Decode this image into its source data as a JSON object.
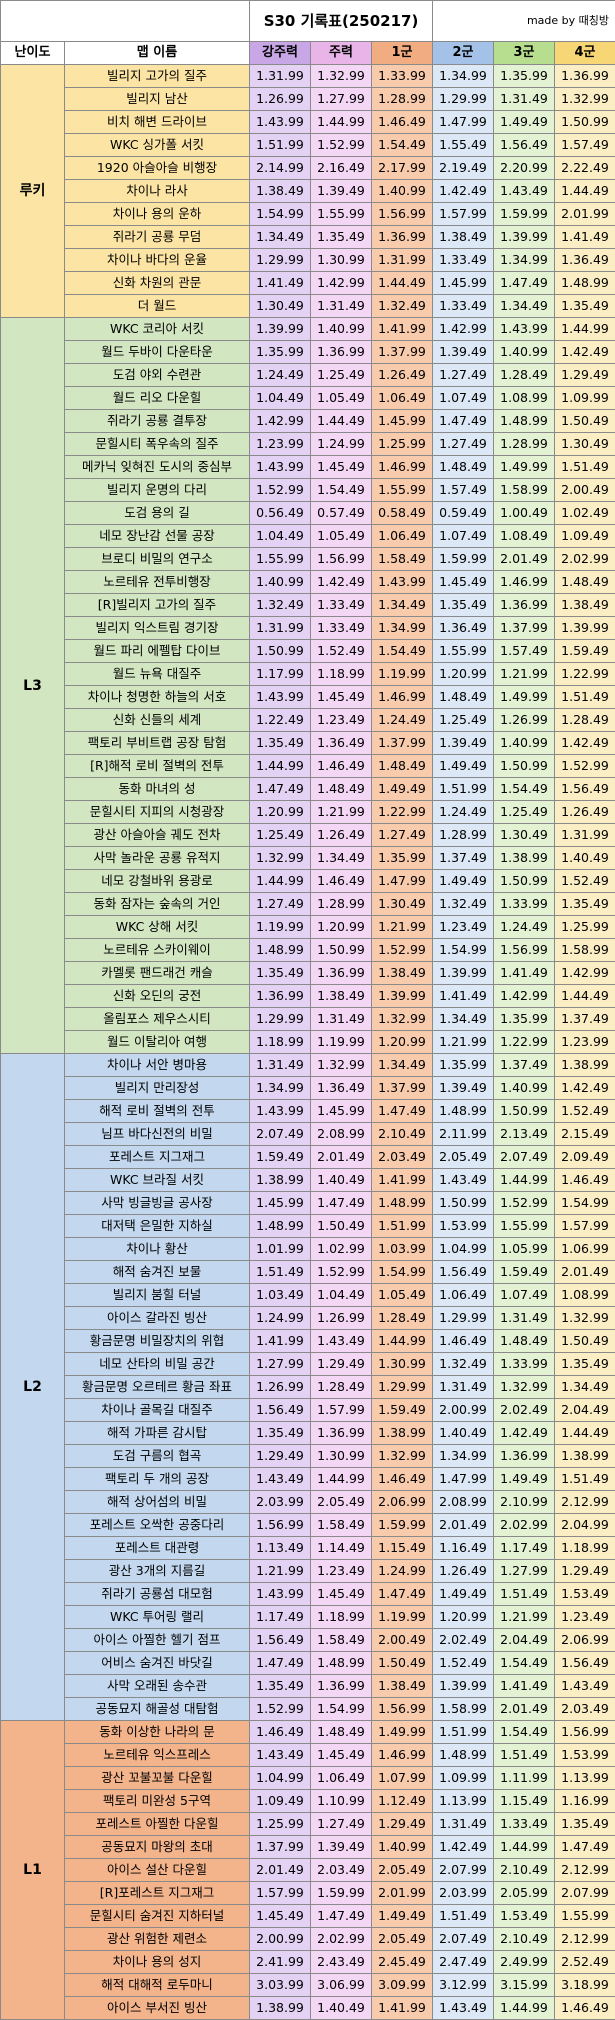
{
  "title": "S30 기록표(250217)",
  "made_by": "made by 때칭방",
  "headers": [
    "난이도",
    "맵 이름",
    "강주력",
    "주력",
    "1군",
    "2군",
    "3군",
    "4군"
  ],
  "colors": {
    "rookie": "#fce5a4",
    "L3": "#d3e6c2",
    "L2": "#c3d8ef",
    "L1": "#f3b38b"
  },
  "sections": [
    {
      "level": "루키",
      "key": "rookie",
      "rows": [
        [
          "빌리지 고가의 질주",
          "1.31.99",
          "1.32.99",
          "1.33.99",
          "1.34.99",
          "1.35.99",
          "1.36.99"
        ],
        [
          "빌리지 남산",
          "1.26.99",
          "1.27.99",
          "1.28.99",
          "1.29.99",
          "1.31.49",
          "1.32.99"
        ],
        [
          "비치 해변 드라이브",
          "1.43.99",
          "1.44.99",
          "1.46.49",
          "1.47.99",
          "1.49.49",
          "1.50.99"
        ],
        [
          "WKC 싱가폴 서킷",
          "1.51.99",
          "1.52.99",
          "1.54.49",
          "1.55.49",
          "1.56.49",
          "1.57.49"
        ],
        [
          "1920 아슬아슬 비행장",
          "2.14.99",
          "2.16.49",
          "2.17.99",
          "2.19.49",
          "2.20.99",
          "2.22.49"
        ],
        [
          "차이나 라사",
          "1.38.49",
          "1.39.49",
          "1.40.99",
          "1.42.49",
          "1.43.49",
          "1.44.49"
        ],
        [
          "차이나 용의 운하",
          "1.54.99",
          "1.55.99",
          "1.56.99",
          "1.57.99",
          "1.59.99",
          "2.01.99"
        ],
        [
          "쥐라기 공룡 무덤",
          "1.34.49",
          "1.35.49",
          "1.36.99",
          "1.38.49",
          "1.39.99",
          "1.41.49"
        ],
        [
          "차이나 바다의 운율",
          "1.29.99",
          "1.30.99",
          "1.31.99",
          "1.33.49",
          "1.34.99",
          "1.36.49"
        ],
        [
          "신화 차원의 관문",
          "1.41.49",
          "1.42.99",
          "1.44.49",
          "1.45.99",
          "1.47.49",
          "1.48.99"
        ],
        [
          "더 월드",
          "1.30.49",
          "1.31.49",
          "1.32.49",
          "1.33.49",
          "1.34.49",
          "1.35.49"
        ]
      ]
    },
    {
      "level": "L3",
      "key": "L3",
      "rows": [
        [
          "WKC 코리아 서킷",
          "1.39.99",
          "1.40.99",
          "1.41.99",
          "1.42.99",
          "1.43.99",
          "1.44.99"
        ],
        [
          "월드 두바이 다운타운",
          "1.35.99",
          "1.36.99",
          "1.37.99",
          "1.39.49",
          "1.40.99",
          "1.42.49"
        ],
        [
          "도검 야외 수련관",
          "1.24.49",
          "1.25.49",
          "1.26.49",
          "1.27.49",
          "1.28.49",
          "1.29.49"
        ],
        [
          "월드 리오 다운힐",
          "1.04.49",
          "1.05.49",
          "1.06.49",
          "1.07.49",
          "1.08.99",
          "1.09.99"
        ],
        [
          "쥐라기 공룡 결투장",
          "1.42.99",
          "1.44.49",
          "1.45.99",
          "1.47.49",
          "1.48.99",
          "1.50.49"
        ],
        [
          "문힐시티 폭우속의 질주",
          "1.23.99",
          "1.24.99",
          "1.25.99",
          "1.27.49",
          "1.28.99",
          "1.30.49"
        ],
        [
          "메카닉 잊혀진 도시의 중심부",
          "1.43.99",
          "1.45.49",
          "1.46.99",
          "1.48.49",
          "1.49.99",
          "1.51.49"
        ],
        [
          "빌리지 운명의 다리",
          "1.52.99",
          "1.54.49",
          "1.55.99",
          "1.57.49",
          "1.58.99",
          "2.00.49"
        ],
        [
          "도검 용의 길",
          "0.56.49",
          "0.57.49",
          "0.58.49",
          "0.59.49",
          "1.00.49",
          "1.02.49"
        ],
        [
          "네모 장난감 선물 공장",
          "1.04.49",
          "1.05.49",
          "1.06.49",
          "1.07.49",
          "1.08.49",
          "1.09.49"
        ],
        [
          "브로디 비밀의 연구소",
          "1.55.99",
          "1.56.99",
          "1.58.49",
          "1.59.99",
          "2.01.49",
          "2.02.99"
        ],
        [
          "노르테유 전투비행장",
          "1.40.99",
          "1.42.49",
          "1.43.99",
          "1.45.49",
          "1.46.99",
          "1.48.49"
        ],
        [
          "[R]빌리지 고가의 질주",
          "1.32.49",
          "1.33.49",
          "1.34.49",
          "1.35.49",
          "1.36.99",
          "1.38.49"
        ],
        [
          "빌리지 익스트림 경기장",
          "1.31.99",
          "1.33.49",
          "1.34.99",
          "1.36.49",
          "1.37.99",
          "1.39.99"
        ],
        [
          "월드 파리 에펠탑 다이브",
          "1.50.99",
          "1.52.49",
          "1.54.49",
          "1.55.99",
          "1.57.49",
          "1.59.49"
        ],
        [
          "월드 뉴욕 대질주",
          "1.17.99",
          "1.18.99",
          "1.19.99",
          "1.20.99",
          "1.21.99",
          "1.22.99"
        ],
        [
          "차이나 청명한 하늘의 서호",
          "1.43.99",
          "1.45.49",
          "1.46.99",
          "1.48.49",
          "1.49.99",
          "1.51.49"
        ],
        [
          "신화 신들의 세계",
          "1.22.49",
          "1.23.49",
          "1.24.49",
          "1.25.49",
          "1.26.99",
          "1.28.49"
        ],
        [
          "팩토리 부비트랩 공장 탐험",
          "1.35.49",
          "1.36.49",
          "1.37.99",
          "1.39.49",
          "1.40.99",
          "1.42.49"
        ],
        [
          "[R]해적 로비 절벽의 전투",
          "1.44.99",
          "1.46.49",
          "1.48.49",
          "1.49.49",
          "1.50.99",
          "1.52.99"
        ],
        [
          "동화 마녀의 성",
          "1.47.49",
          "1.48.49",
          "1.49.49",
          "1.51.99",
          "1.54.49",
          "1.56.49"
        ],
        [
          "문힐시티 지피의 시청광장",
          "1.20.99",
          "1.21.99",
          "1.22.99",
          "1.24.49",
          "1.25.49",
          "1.26.49"
        ],
        [
          "광산 아슬아슬 궤도 전차",
          "1.25.49",
          "1.26.49",
          "1.27.49",
          "1.28.99",
          "1.30.49",
          "1.31.99"
        ],
        [
          "사막 놀라운 공룡 유적지",
          "1.32.99",
          "1.34.49",
          "1.35.99",
          "1.37.49",
          "1.38.99",
          "1.40.49"
        ],
        [
          "네모 강철바위 용광로",
          "1.44.99",
          "1.46.49",
          "1.47.99",
          "1.49.49",
          "1.50.99",
          "1.52.49"
        ],
        [
          "동화 잠자는 숲속의 거인",
          "1.27.49",
          "1.28.99",
          "1.30.49",
          "1.32.49",
          "1.33.99",
          "1.35.49"
        ],
        [
          "WKC 상해 서킷",
          "1.19.99",
          "1.20.99",
          "1.21.99",
          "1.23.49",
          "1.24.49",
          "1.25.99"
        ],
        [
          "노르테유 스카이웨이",
          "1.48.99",
          "1.50.99",
          "1.52.99",
          "1.54.99",
          "1.56.99",
          "1.58.99"
        ],
        [
          "카멜롯 팬드래건 캐슬",
          "1.35.49",
          "1.36.99",
          "1.38.49",
          "1.39.99",
          "1.41.49",
          "1.42.99"
        ],
        [
          "신화 오딘의 궁전",
          "1.36.99",
          "1.38.49",
          "1.39.99",
          "1.41.49",
          "1.42.99",
          "1.44.49"
        ],
        [
          "올림포스 제우스시티",
          "1.29.99",
          "1.31.49",
          "1.32.99",
          "1.34.49",
          "1.35.99",
          "1.37.49"
        ],
        [
          "월드 이탈리아 여행",
          "1.18.99",
          "1.19.99",
          "1.20.99",
          "1.21.99",
          "1.22.99",
          "1.23.99"
        ]
      ]
    },
    {
      "level": "L2",
      "key": "L2",
      "rows": [
        [
          "차이나 서안 병마용",
          "1.31.49",
          "1.32.99",
          "1.34.49",
          "1.35.99",
          "1.37.49",
          "1.38.99"
        ],
        [
          "빌리지 만리장성",
          "1.34.99",
          "1.36.49",
          "1.37.99",
          "1.39.49",
          "1.40.99",
          "1.42.49"
        ],
        [
          "해적 로비 절벽의 전투",
          "1.43.99",
          "1.45.99",
          "1.47.49",
          "1.48.99",
          "1.50.99",
          "1.52.49"
        ],
        [
          "님프 바다신전의 비밀",
          "2.07.49",
          "2.08.99",
          "2.10.49",
          "2.11.99",
          "2.13.49",
          "2.15.49"
        ],
        [
          "포레스트 지그재그",
          "1.59.49",
          "2.01.49",
          "2.03.49",
          "2.05.49",
          "2.07.49",
          "2.09.49"
        ],
        [
          "WKC 브라질 서킷",
          "1.38.99",
          "1.40.49",
          "1.41.99",
          "1.43.49",
          "1.44.99",
          "1.46.49"
        ],
        [
          "사막 빙글빙글 공사장",
          "1.45.99",
          "1.47.49",
          "1.48.99",
          "1.50.99",
          "1.52.99",
          "1.54.99"
        ],
        [
          "대저택 은밀한 지하실",
          "1.48.99",
          "1.50.49",
          "1.51.99",
          "1.53.99",
          "1.55.99",
          "1.57.99"
        ],
        [
          "차이나 황산",
          "1.01.99",
          "1.02.99",
          "1.03.99",
          "1.04.99",
          "1.05.99",
          "1.06.99"
        ],
        [
          "해적 숨겨진 보물",
          "1.51.49",
          "1.52.99",
          "1.54.99",
          "1.56.49",
          "1.59.49",
          "2.01.49"
        ],
        [
          "빌리지 붐힐 터널",
          "1.03.49",
          "1.04.49",
          "1.05.49",
          "1.06.49",
          "1.07.49",
          "1.08.99"
        ],
        [
          "아이스 갈라진 빙산",
          "1.24.99",
          "1.26.99",
          "1.28.49",
          "1.29.99",
          "1.31.49",
          "1.32.99"
        ],
        [
          "황금문명 비밀장치의 위협",
          "1.41.99",
          "1.43.49",
          "1.44.99",
          "1.46.49",
          "1.48.49",
          "1.50.49"
        ],
        [
          "네모 산타의 비밀 공간",
          "1.27.99",
          "1.29.49",
          "1.30.99",
          "1.32.49",
          "1.33.99",
          "1.35.49"
        ],
        [
          "황금문명 오르테르 황금 좌표",
          "1.26.99",
          "1.28.49",
          "1.29.99",
          "1.31.49",
          "1.32.99",
          "1.34.49"
        ],
        [
          "차이나 골목길 대질주",
          "1.56.49",
          "1.57.99",
          "1.59.49",
          "2.00.99",
          "2.02.49",
          "2.04.49"
        ],
        [
          "해적 가파른 감시탑",
          "1.35.49",
          "1.36.99",
          "1.38.99",
          "1.40.49",
          "1.42.49",
          "1.44.49"
        ],
        [
          "도검 구름의 협곡",
          "1.29.49",
          "1.30.99",
          "1.32.99",
          "1.34.99",
          "1.36.99",
          "1.38.99"
        ],
        [
          "팩토리 두 개의 공장",
          "1.43.49",
          "1.44.99",
          "1.46.49",
          "1.47.99",
          "1.49.49",
          "1.51.49"
        ],
        [
          "해적 상어섬의 비밀",
          "2.03.99",
          "2.05.49",
          "2.06.99",
          "2.08.99",
          "2.10.99",
          "2.12.99"
        ],
        [
          "포레스트 오싹한 공중다리",
          "1.56.99",
          "1.58.49",
          "1.59.99",
          "2.01.49",
          "2.02.99",
          "2.04.99"
        ],
        [
          "포레스트 대관령",
          "1.13.49",
          "1.14.49",
          "1.15.49",
          "1.16.49",
          "1.17.49",
          "1.18.99"
        ],
        [
          "광산 3개의 지름길",
          "1.21.99",
          "1.23.49",
          "1.24.99",
          "1.26.49",
          "1.27.99",
          "1.29.49"
        ],
        [
          "쥐라기 공룡섬 대모험",
          "1.43.99",
          "1.45.49",
          "1.47.49",
          "1.49.49",
          "1.51.49",
          "1.53.49"
        ],
        [
          "WKC 투어링 랠리",
          "1.17.49",
          "1.18.99",
          "1.19.99",
          "1.20.99",
          "1.21.99",
          "1.23.49"
        ],
        [
          "아이스 아찔한 헬기 점프",
          "1.56.49",
          "1.58.49",
          "2.00.49",
          "2.02.49",
          "2.04.49",
          "2.06.99"
        ],
        [
          "어비스 숨겨진 바닷길",
          "1.47.49",
          "1.48.99",
          "1.50.49",
          "1.52.49",
          "1.54.49",
          "1.56.49"
        ],
        [
          "사막 오래된 송수관",
          "1.35.49",
          "1.36.99",
          "1.38.49",
          "1.39.99",
          "1.41.49",
          "1.43.49"
        ],
        [
          "공동묘지 해골성 대탐험",
          "1.52.99",
          "1.54.99",
          "1.56.99",
          "1.58.99",
          "2.01.49",
          "2.03.49"
        ]
      ]
    },
    {
      "level": "L1",
      "key": "L1",
      "rows": [
        [
          "동화 이상한 나라의 문",
          "1.46.49",
          "1.48.49",
          "1.49.99",
          "1.51.99",
          "1.54.49",
          "1.56.99"
        ],
        [
          "노르테유 익스프레스",
          "1.43.49",
          "1.45.49",
          "1.46.99",
          "1.48.99",
          "1.51.49",
          "1.53.99"
        ],
        [
          "광산 꼬불꼬불 다운힐",
          "1.04.99",
          "1.06.49",
          "1.07.99",
          "1.09.99",
          "1.11.99",
          "1.13.99"
        ],
        [
          "팩토리 미완성 5구역",
          "1.09.49",
          "1.10.99",
          "1.12.49",
          "1.13.99",
          "1.15.49",
          "1.16.99"
        ],
        [
          "포레스트 아찔한 다운힐",
          "1.25.99",
          "1.27.49",
          "1.29.49",
          "1.31.49",
          "1.33.49",
          "1.35.49"
        ],
        [
          "공동묘지 마왕의 초대",
          "1.37.99",
          "1.39.49",
          "1.40.99",
          "1.42.49",
          "1.44.99",
          "1.47.49"
        ],
        [
          "아이스 설산 다운힐",
          "2.01.49",
          "2.03.49",
          "2.05.49",
          "2.07.99",
          "2.10.49",
          "2.12.99"
        ],
        [
          "[R]포레스트 지그재그",
          "1.57.99",
          "1.59.99",
          "2.01.99",
          "2.03.99",
          "2.05.99",
          "2.07.99"
        ],
        [
          "문힐시티 숨겨진 지하터널",
          "1.45.49",
          "1.47.49",
          "1.49.49",
          "1.51.49",
          "1.53.49",
          "1.55.99"
        ],
        [
          "광산 위험한 제련소",
          "2.00.99",
          "2.02.99",
          "2.05.49",
          "2.07.49",
          "2.10.49",
          "2.12.99"
        ],
        [
          "차이나 용의 성지",
          "2.41.99",
          "2.43.49",
          "2.45.49",
          "2.47.49",
          "2.49.99",
          "2.52.49"
        ],
        [
          "해적 대해적 로두마니",
          "3.03.99",
          "3.06.99",
          "3.09.99",
          "3.12.99",
          "3.15.99",
          "3.18.99"
        ],
        [
          "아이스 부서진 빙산",
          "1.38.99",
          "1.40.49",
          "1.41.99",
          "1.43.49",
          "1.44.99",
          "1.46.49"
        ]
      ]
    }
  ]
}
